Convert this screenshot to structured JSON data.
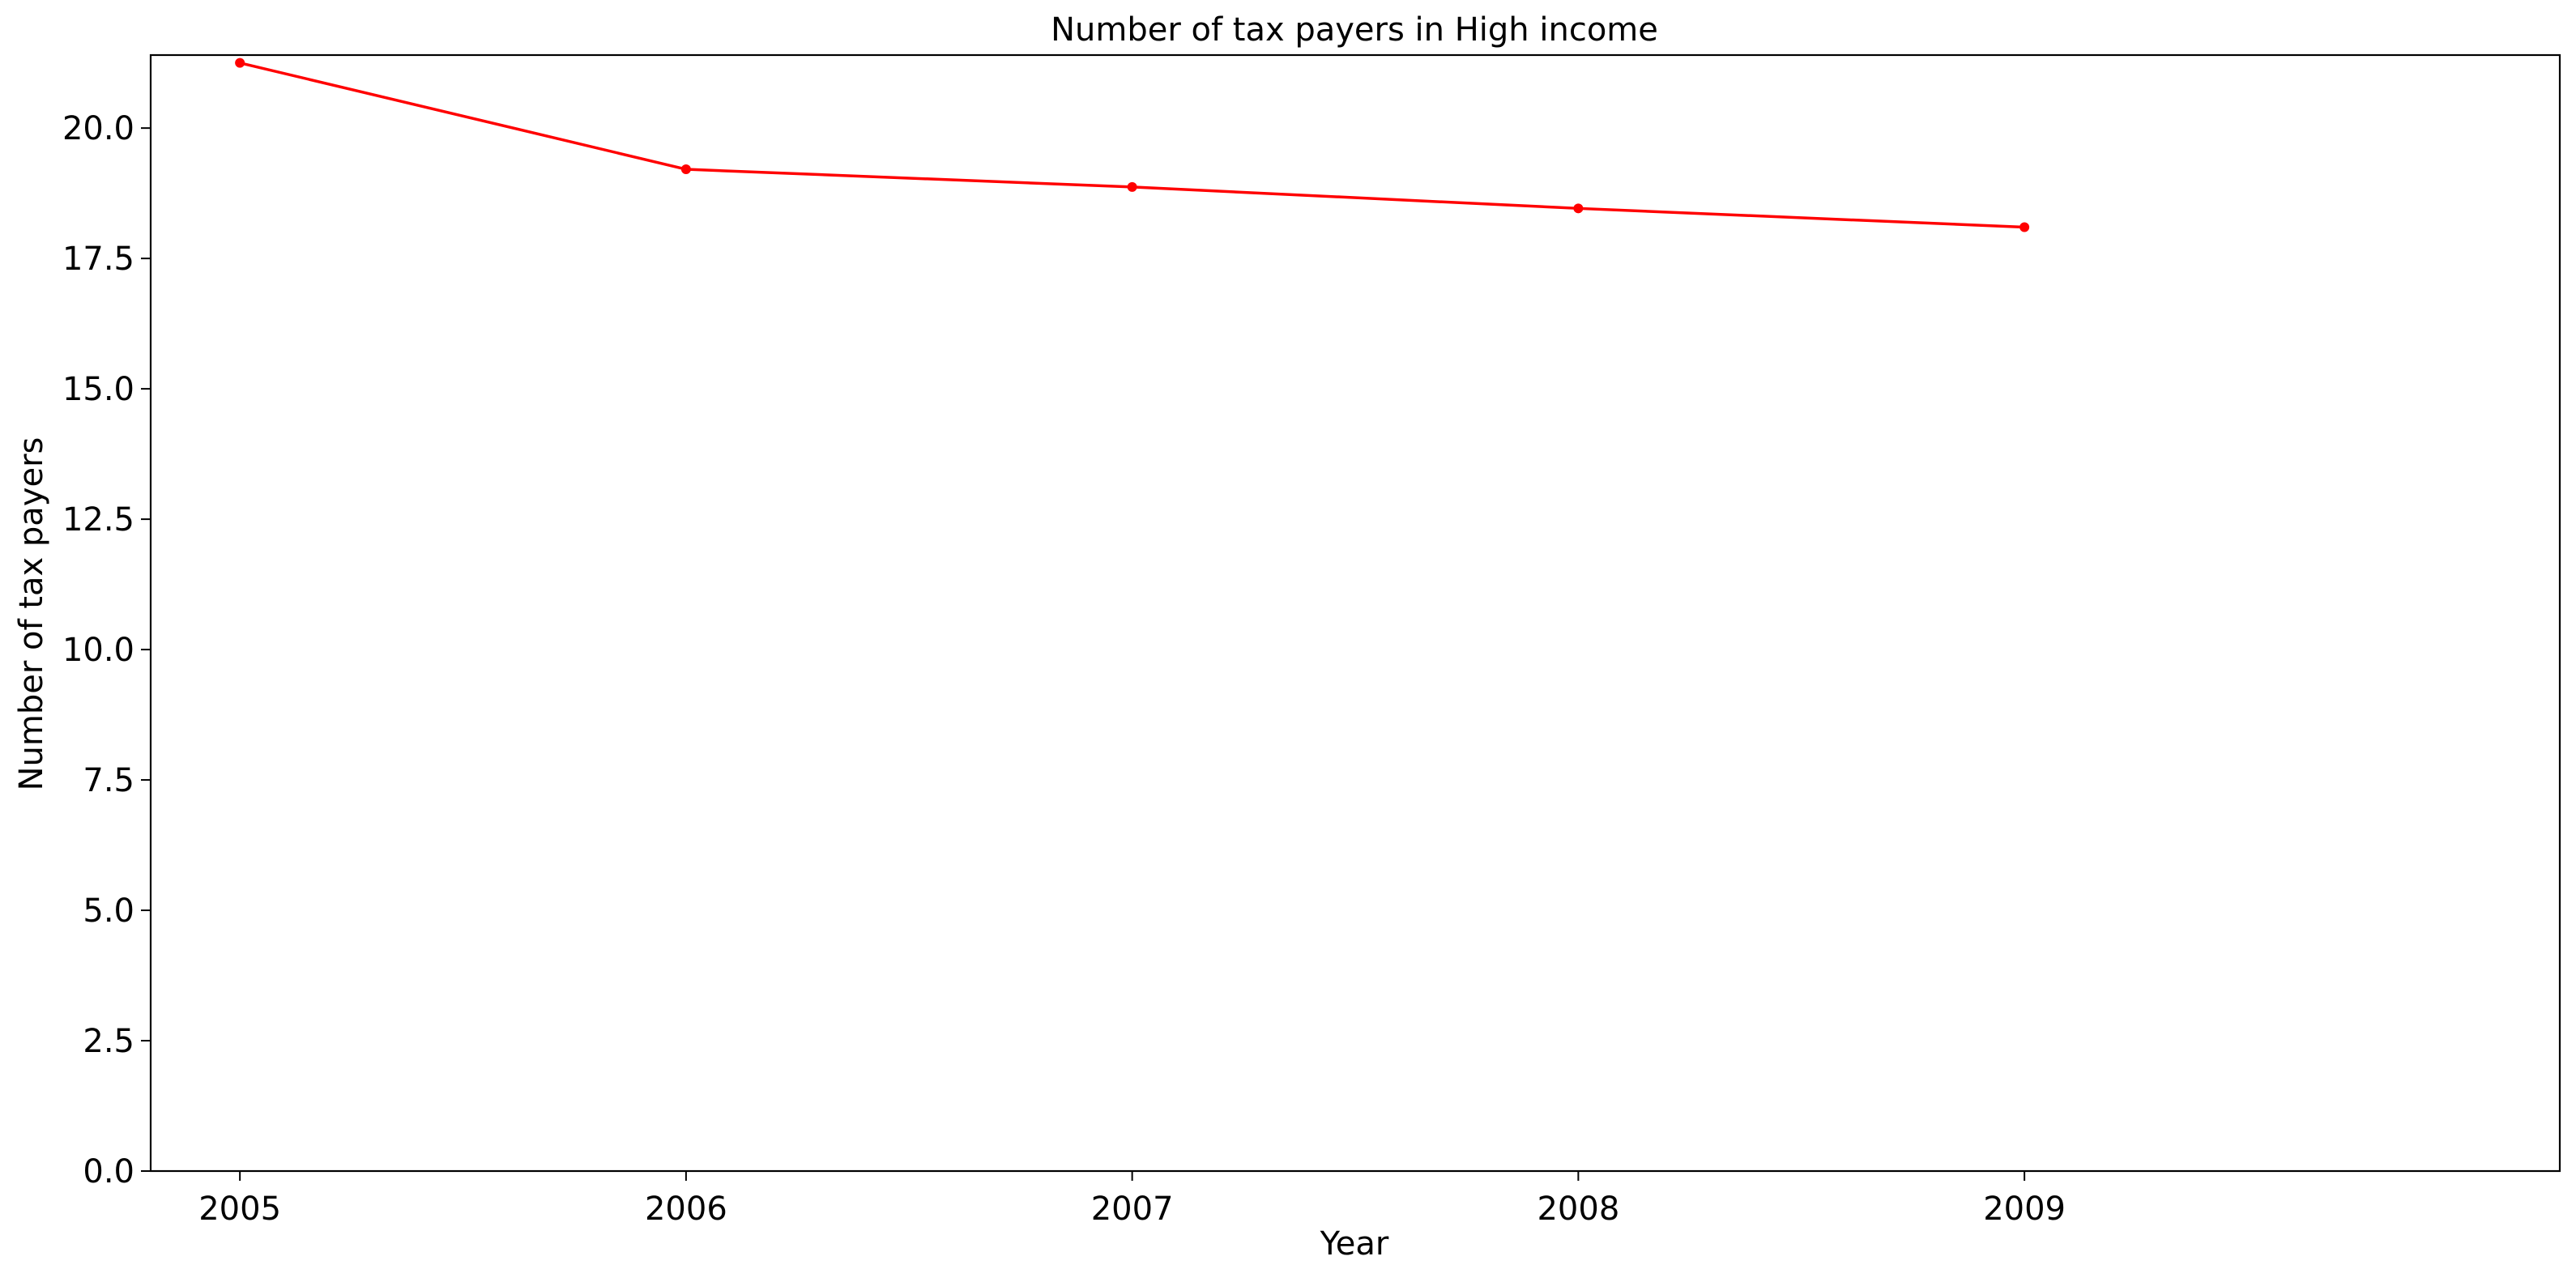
{
  "chart_data": {
    "type": "line",
    "title": "Number of tax payers in High income",
    "xlabel": "Year",
    "ylabel": "Number of tax payers",
    "x": [
      2005,
      2006,
      2007,
      2008,
      2009
    ],
    "x_tick_labels": [
      "2005",
      "2006",
      "2007",
      "2008",
      "2009"
    ],
    "series": [
      {
        "values": [
          21.25,
          19.21,
          18.87,
          18.46,
          18.1
        ],
        "color": "#ff0000",
        "marker": "circle"
      }
    ],
    "xlim": [
      2004.8,
      2010.2
    ],
    "ylim": [
      0,
      21.4
    ],
    "y_ticks": [
      0,
      2.5,
      5,
      7.5,
      10,
      12.5,
      15,
      17.5,
      20
    ],
    "y_tick_labels": [
      "0.0",
      "2.5",
      "5.0",
      "7.5",
      "10.0",
      "12.5",
      "15.0",
      "17.5",
      "20.0"
    ],
    "grid": false,
    "legend": "none"
  }
}
